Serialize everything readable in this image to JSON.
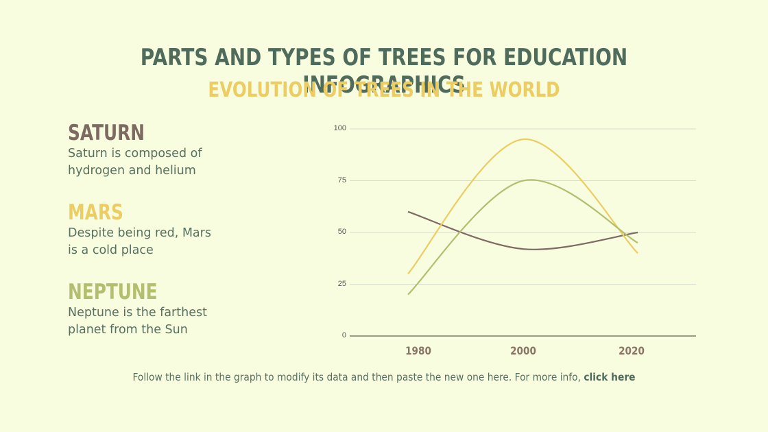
{
  "header": {
    "title": "PARTS AND TYPES OF TREES FOR EDUCATION INFOGRAPHICS",
    "subtitle": "EVOLUTION OF TREES IN THE WORLD"
  },
  "items": [
    {
      "title": "SATURN",
      "color": "#7d6a61",
      "desc_line1": "Saturn is composed of",
      "desc_line2": "hydrogen and helium"
    },
    {
      "title": "MARS",
      "color": "#eccd63",
      "desc_line1": "Despite being red, Mars",
      "desc_line2": "is a cold place"
    },
    {
      "title": "NEPTUNE",
      "color": "#b3be6e",
      "desc_line1": "Neptune is the farthest",
      "desc_line2": "planet from the Sun"
    }
  ],
  "footer": {
    "text": "Follow the link in the graph to modify its data and then paste the new one here. For more info, ",
    "link": "click here"
  },
  "colors": {
    "background": "#f8fde0",
    "title": "#4f6b5b",
    "subtitle": "#eccd63",
    "saturn": "#7d6a61",
    "mars": "#eccd63",
    "neptune": "#b3be6e"
  },
  "chart_data": {
    "type": "line",
    "title": "",
    "xlabel": "",
    "ylabel": "",
    "categories": [
      "1980",
      "2000",
      "2020"
    ],
    "ylim": [
      0,
      100
    ],
    "yticks": [
      "100",
      "75",
      "50",
      "25",
      "0"
    ],
    "grid": true,
    "legend": "none",
    "smooth": true,
    "series": [
      {
        "name": "Saturn",
        "color": "#7d6a61",
        "values": [
          60,
          42,
          50
        ]
      },
      {
        "name": "Mars",
        "color": "#eccd63",
        "values": [
          30,
          95,
          40
        ]
      },
      {
        "name": "Neptune",
        "color": "#b3be6e",
        "values": [
          20,
          75,
          45
        ]
      }
    ]
  }
}
